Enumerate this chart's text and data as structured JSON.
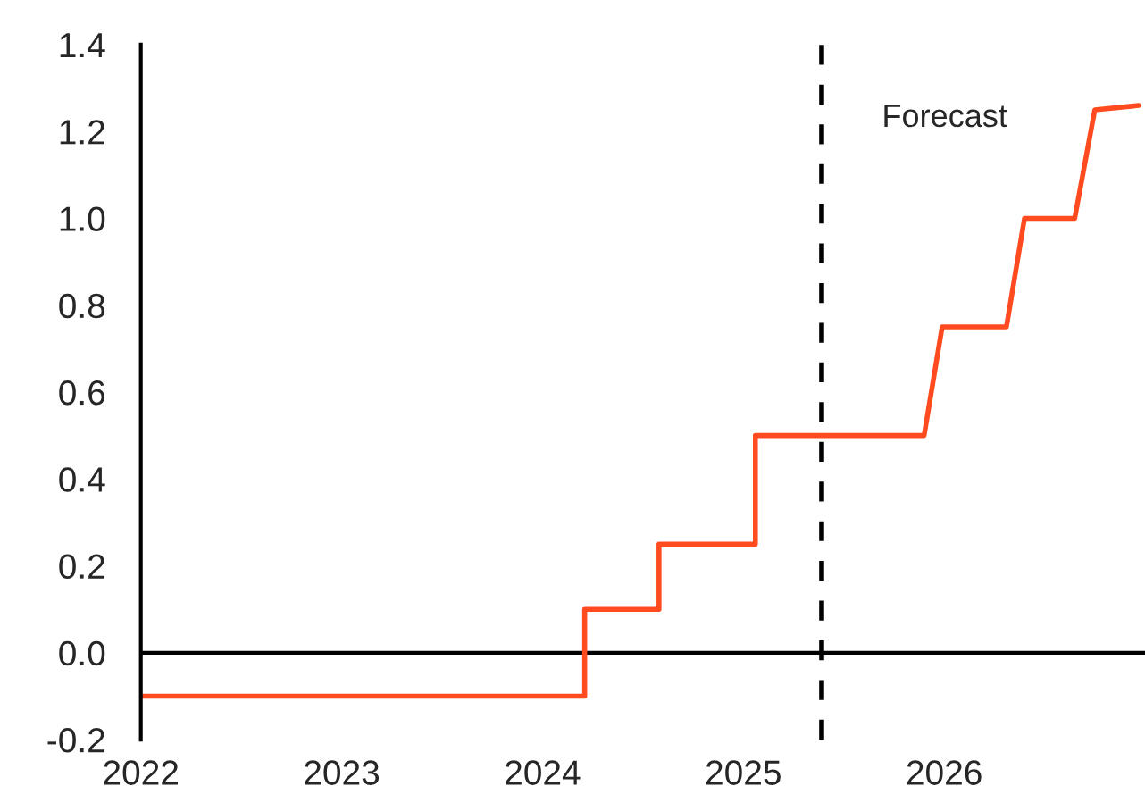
{
  "chart_data": {
    "type": "line",
    "series": [
      {
        "color": "#ff4b1f",
        "x": [
          2022,
          2024.21,
          2024.21,
          2024.58,
          2024.58,
          2025.06,
          2025.06,
          2025.4,
          2025.9,
          2025.99,
          2026.31,
          2026.4,
          2026.65,
          2026.75,
          2026.97
        ],
        "values": [
          -0.1,
          -0.1,
          0.1,
          0.1,
          0.25,
          0.25,
          0.5,
          0.5,
          0.5,
          0.75,
          0.75,
          1.0,
          1.0,
          1.25,
          1.26
        ]
      }
    ],
    "xlim": [
      2022,
      2027
    ],
    "xticks": [
      2022,
      2023,
      2024,
      2025,
      2026
    ],
    "ylim": [
      -0.2,
      1.4
    ],
    "yticks": [
      {
        "value": -0.2,
        "label": "-0.2"
      },
      {
        "value": 0,
        "label": "0.0"
      },
      {
        "value": 0.2,
        "label": "0.2"
      },
      {
        "value": 0.4,
        "label": "0.4"
      },
      {
        "value": 0.6,
        "label": "0.6"
      },
      {
        "value": 0.8,
        "label": "0.8"
      },
      {
        "value": 1.0,
        "label": "1.0"
      },
      {
        "value": 1.2,
        "label": "1.2"
      },
      {
        "value": 1.4,
        "label": "1.4"
      }
    ],
    "ref_lines": [
      {
        "axis": "y",
        "value": 0,
        "color": "#000000",
        "line_style": "solid"
      },
      {
        "axis": "x",
        "value": 2025.39,
        "label": "Forecast",
        "color": "#000000",
        "line_style": "dashed"
      }
    ],
    "grid": false,
    "legend": false
  }
}
